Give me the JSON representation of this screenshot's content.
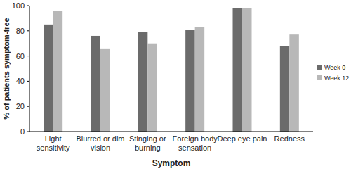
{
  "chart_data": {
    "type": "bar",
    "categories": [
      "Light sensitivity",
      "Blurred or dim vision",
      "Stinging or burning",
      "Foreign body sensation",
      "Deep eye pain",
      "Redness"
    ],
    "series": [
      {
        "name": "Week 0",
        "color": "#6b6b6b",
        "values": [
          85,
          76,
          79,
          81,
          98,
          68
        ]
      },
      {
        "name": "Week 12",
        "color": "#b8b8b8",
        "values": [
          96,
          66,
          70,
          83,
          98,
          77
        ]
      }
    ],
    "x_label": "Symptom",
    "y_label": "% of patients symptom-free",
    "ylim": [
      0,
      100
    ],
    "yticks": [
      0,
      20,
      40,
      60,
      80,
      100
    ],
    "grid": false,
    "legend": "right"
  }
}
